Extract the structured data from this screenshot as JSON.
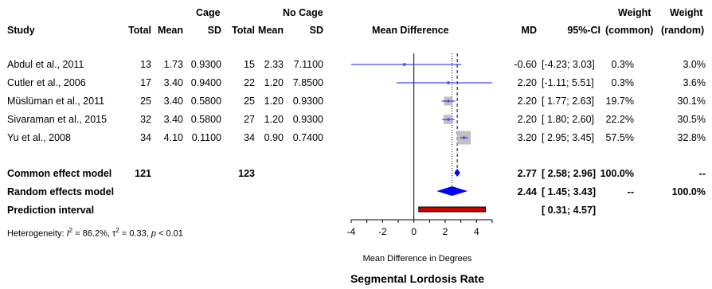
{
  "header": {
    "group1": "Cage",
    "group2": "No Cage",
    "study": "Study",
    "total": "Total",
    "mean": "Mean",
    "sd": "SD",
    "mean_difference": "Mean Difference",
    "md": "MD",
    "ci": "95%-CI",
    "weight": "Weight",
    "common": "(common)",
    "random": "(random)"
  },
  "studies": [
    {
      "name": "Abdul et al., 2011",
      "t1": "13",
      "m1": "1.73",
      "sd1": "0.9300",
      "t2": "15",
      "m2": "2.33",
      "sd2": "7.1100",
      "md": "-0.60",
      "ci": "[-4.23; 3.03]",
      "wc": "0.3%",
      "wr": "3.0%"
    },
    {
      "name": "Cutler et al., 2006",
      "t1": "17",
      "m1": "3.40",
      "sd1": "0.9400",
      "t2": "22",
      "m2": "1.20",
      "sd2": "7.8500",
      "md": "2.20",
      "ci": "[-1.11; 5.51]",
      "wc": "0.3%",
      "wr": "3.6%"
    },
    {
      "name": "Müslüman et al., 2011",
      "t1": "25",
      "m1": "3.40",
      "sd1": "0.5800",
      "t2": "25",
      "m2": "1.20",
      "sd2": "0.9300",
      "md": "2.20",
      "ci": "[ 1.77; 2.63]",
      "wc": "19.7%",
      "wr": "30.1%"
    },
    {
      "name": "Sivaraman et al., 2015",
      "t1": "32",
      "m1": "3.40",
      "sd1": "0.5800",
      "t2": "27",
      "m2": "1.20",
      "sd2": "0.9300",
      "md": "2.20",
      "ci": "[ 1.80; 2.60]",
      "wc": "22.2%",
      "wr": "30.5%"
    },
    {
      "name": "Yu et al., 2008",
      "t1": "34",
      "m1": "4.10",
      "sd1": "0.1100",
      "t2": "34",
      "m2": "0.90",
      "sd2": "0.7400",
      "md": "3.20",
      "ci": "[ 2.95; 3.45]",
      "wc": "57.5%",
      "wr": "32.8%"
    }
  ],
  "summary": {
    "common": {
      "label": "Common effect model",
      "t1": "121",
      "t2": "123",
      "md": "2.77",
      "ci": "[ 2.58; 2.96]",
      "wc": "100.0%",
      "wr": "--"
    },
    "random": {
      "label": "Random effects model",
      "md": "2.44",
      "ci": "[ 1.45; 3.43]",
      "wc": "--",
      "wr": "100.0%"
    },
    "prediction": {
      "label": "Prediction interval",
      "ci": "[ 0.31; 4.57]"
    }
  },
  "heterogeneity": {
    "prefix": "Heterogeneity: ",
    "i2_label": "I",
    "i2_value": " = 86.2%, ",
    "tau_label": "τ",
    "tau_value": " = 0.33, ",
    "p_label": "p",
    "p_value": " < 0.01"
  },
  "xlabel": "Mean Difference in Degrees",
  "title": "Segmental Lordosis Rate",
  "colors": {
    "study_line": "#1a1aff",
    "square": "#c0c0c0",
    "diamond": "#0000ff",
    "prediction": "#cc0000"
  },
  "chart_data": {
    "type": "forest",
    "title": "Segmental Lordosis Rate",
    "xlabel": "Mean Difference in Degrees",
    "xlim": [
      -4,
      5
    ],
    "xticks": [
      -4,
      -2,
      0,
      2,
      4
    ],
    "studies": [
      {
        "name": "Abdul et al., 2011",
        "md": -0.6,
        "lower": -4.23,
        "upper": 3.03,
        "weight_common": 0.3
      },
      {
        "name": "Cutler et al., 2006",
        "md": 2.2,
        "lower": -1.11,
        "upper": 5.51,
        "weight_common": 0.3
      },
      {
        "name": "Müslüman et al., 2011",
        "md": 2.2,
        "lower": 1.77,
        "upper": 2.63,
        "weight_common": 19.7
      },
      {
        "name": "Sivaraman et al., 2015",
        "md": 2.2,
        "lower": 1.8,
        "upper": 2.6,
        "weight_common": 22.2
      },
      {
        "name": "Yu et al., 2008",
        "md": 3.2,
        "lower": 2.95,
        "upper": 3.45,
        "weight_common": 57.5
      }
    ],
    "common_effect": {
      "md": 2.77,
      "lower": 2.58,
      "upper": 2.96
    },
    "random_effects": {
      "md": 2.44,
      "lower": 1.45,
      "upper": 3.43
    },
    "prediction_interval": {
      "lower": 0.31,
      "upper": 4.57
    }
  }
}
